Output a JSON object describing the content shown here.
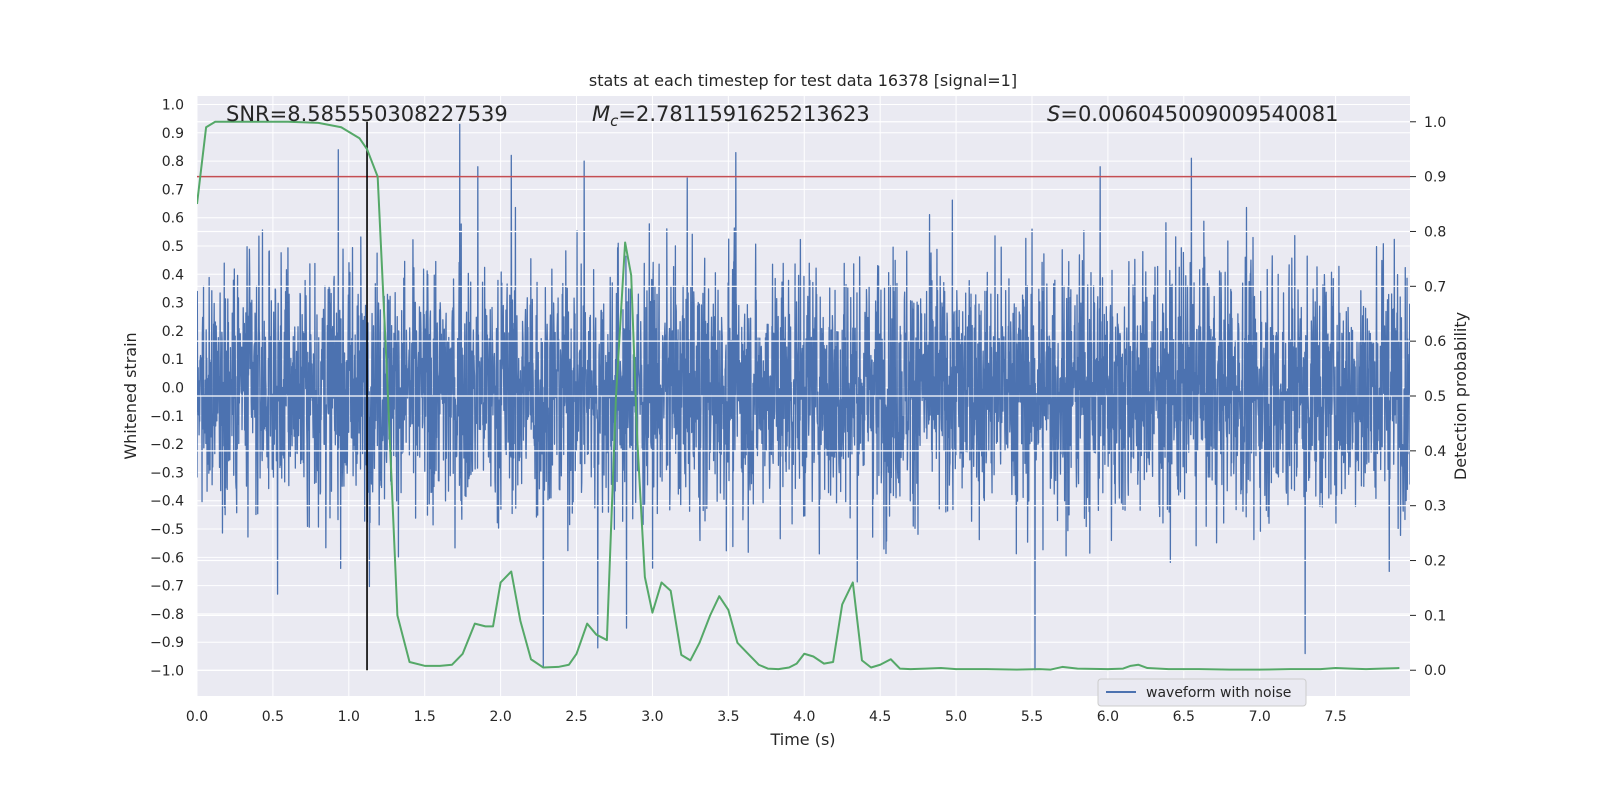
{
  "chart_data": {
    "type": "line",
    "title": "stats at each timestep for test data 16378 [signal=1]",
    "xlabel": "Time (s)",
    "ylabel_left": "Whitened strain",
    "ylabel_right": "Detection probability",
    "xlim": [
      0.0,
      7.99
    ],
    "ylim_left": [
      -1.09,
      1.03
    ],
    "ylim_right": [
      -0.047,
      1.047
    ],
    "x_ticks": [
      0.0,
      0.5,
      1.0,
      1.5,
      2.0,
      2.5,
      3.0,
      3.5,
      4.0,
      4.5,
      5.0,
      5.5,
      6.0,
      6.5,
      7.0,
      7.5
    ],
    "x_tick_labels": [
      "0.0",
      "0.5",
      "1.0",
      "1.5",
      "2.0",
      "2.5",
      "3.0",
      "3.5",
      "4.0",
      "4.5",
      "5.0",
      "5.5",
      "6.0",
      "6.5",
      "7.0",
      "7.5"
    ],
    "y_left_ticks": [
      1.0,
      0.9,
      0.8,
      0.7,
      0.6,
      0.5,
      0.4,
      0.3,
      0.2,
      0.1,
      0.0,
      -0.1,
      -0.2,
      -0.3,
      -0.4,
      -0.5,
      -0.6,
      -0.7,
      -0.8,
      -0.9,
      -1.0
    ],
    "y_left_tick_labels": [
      "1.0",
      "0.9",
      "0.8",
      "0.7",
      "0.6",
      "0.5",
      "0.4",
      "0.3",
      "0.2",
      "0.1",
      "0.0",
      "−0.1",
      "−0.2",
      "−0.3",
      "−0.4",
      "−0.5",
      "−0.6",
      "−0.7",
      "−0.8",
      "−0.9",
      "−1.0"
    ],
    "y_right_ticks": [
      1.0,
      0.9,
      0.8,
      0.7,
      0.6,
      0.5,
      0.4,
      0.3,
      0.2,
      0.1,
      0.0
    ],
    "y_right_tick_labels": [
      "1.0",
      "0.9",
      "0.8",
      "0.7",
      "0.6",
      "0.5",
      "0.4",
      "0.3",
      "0.2",
      "0.1",
      "0.0"
    ],
    "annotations": {
      "snr": "SNR=8.585550308227539",
      "mc_symbol": "M",
      "mc_sub": "c",
      "mc_value": "=2.7811591625213623",
      "s_symbol": "S",
      "s_value": "=0.006045009009540081"
    },
    "threshold": {
      "value": 0.9,
      "axis": "right",
      "color": "#c44e52"
    },
    "event_time": {
      "x": 1.12,
      "color": "#000000"
    },
    "series": [
      {
        "name": "waveform with noise",
        "axis": "left",
        "color": "#4c72b0",
        "kind": "noise",
        "n_samples": 4096,
        "band_rms": 0.22,
        "spikes": [
          {
            "x": 0.93,
            "y": 0.84
          },
          {
            "x": 1.73,
            "y": 0.93
          },
          {
            "x": 2.07,
            "y": 0.82
          },
          {
            "x": 2.55,
            "y": 0.8
          },
          {
            "x": 3.55,
            "y": 0.83
          },
          {
            "x": 6.55,
            "y": 0.81
          },
          {
            "x": 7.3,
            "y": 0.9
          },
          {
            "x": 1.85,
            "y": 0.78
          },
          {
            "x": 5.95,
            "y": 0.78
          },
          {
            "x": 5.52,
            "y": -1.0
          },
          {
            "x": 2.28,
            "y": -0.99
          },
          {
            "x": 7.3,
            "y": -0.94
          },
          {
            "x": 2.64,
            "y": -0.92
          },
          {
            "x": 2.83,
            "y": -0.85
          },
          {
            "x": 0.53,
            "y": -0.73
          }
        ]
      },
      {
        "name": "detection probability",
        "axis": "right",
        "color": "#55a868",
        "x": [
          0.0,
          0.06,
          0.12,
          0.25,
          0.4,
          0.6,
          0.8,
          0.95,
          1.07,
          1.12,
          1.19,
          1.25,
          1.32,
          1.4,
          1.5,
          1.6,
          1.68,
          1.75,
          1.83,
          1.9,
          1.95,
          2.0,
          2.07,
          2.13,
          2.2,
          2.28,
          2.38,
          2.45,
          2.5,
          2.57,
          2.63,
          2.7,
          2.76,
          2.82,
          2.86,
          2.9,
          2.95,
          3.0,
          3.06,
          3.12,
          3.19,
          3.25,
          3.31,
          3.38,
          3.44,
          3.5,
          3.56,
          3.63,
          3.7,
          3.76,
          3.83,
          3.9,
          3.95,
          4.0,
          4.06,
          4.13,
          4.19,
          4.25,
          4.32,
          4.38,
          4.44,
          4.5,
          4.57,
          4.63,
          4.7,
          4.8,
          4.9,
          5.0,
          5.2,
          5.4,
          5.55,
          5.62,
          5.7,
          5.8,
          6.0,
          6.1,
          6.15,
          6.2,
          6.26,
          6.4,
          6.6,
          6.8,
          7.0,
          7.2,
          7.4,
          7.5,
          7.6,
          7.7,
          7.8,
          7.92
        ],
        "y": [
          0.85,
          0.99,
          1.0,
          1.0,
          1.0,
          1.0,
          0.998,
          0.99,
          0.97,
          0.95,
          0.9,
          0.55,
          0.1,
          0.015,
          0.008,
          0.008,
          0.01,
          0.03,
          0.085,
          0.08,
          0.08,
          0.16,
          0.18,
          0.09,
          0.02,
          0.005,
          0.006,
          0.01,
          0.03,
          0.085,
          0.065,
          0.055,
          0.5,
          0.78,
          0.72,
          0.42,
          0.17,
          0.105,
          0.16,
          0.145,
          0.028,
          0.018,
          0.05,
          0.1,
          0.135,
          0.11,
          0.05,
          0.03,
          0.01,
          0.003,
          0.002,
          0.005,
          0.012,
          0.03,
          0.025,
          0.012,
          0.015,
          0.12,
          0.16,
          0.018,
          0.005,
          0.01,
          0.02,
          0.003,
          0.002,
          0.003,
          0.004,
          0.002,
          0.002,
          0.001,
          0.002,
          0.001,
          0.006,
          0.003,
          0.002,
          0.003,
          0.008,
          0.01,
          0.004,
          0.002,
          0.002,
          0.001,
          0.001,
          0.002,
          0.002,
          0.004,
          0.003,
          0.002,
          0.003,
          0.004
        ]
      }
    ],
    "legend": {
      "entries": [
        "waveform with noise"
      ],
      "location": "lower-right"
    },
    "grid": true
  },
  "colors": {
    "axes_bg": "#eaeaf2",
    "grid": "#ffffff",
    "waveform": "#4c72b0",
    "probability": "#55a868",
    "threshold": "#c44e52",
    "event_line": "#000000",
    "text": "#262626"
  }
}
